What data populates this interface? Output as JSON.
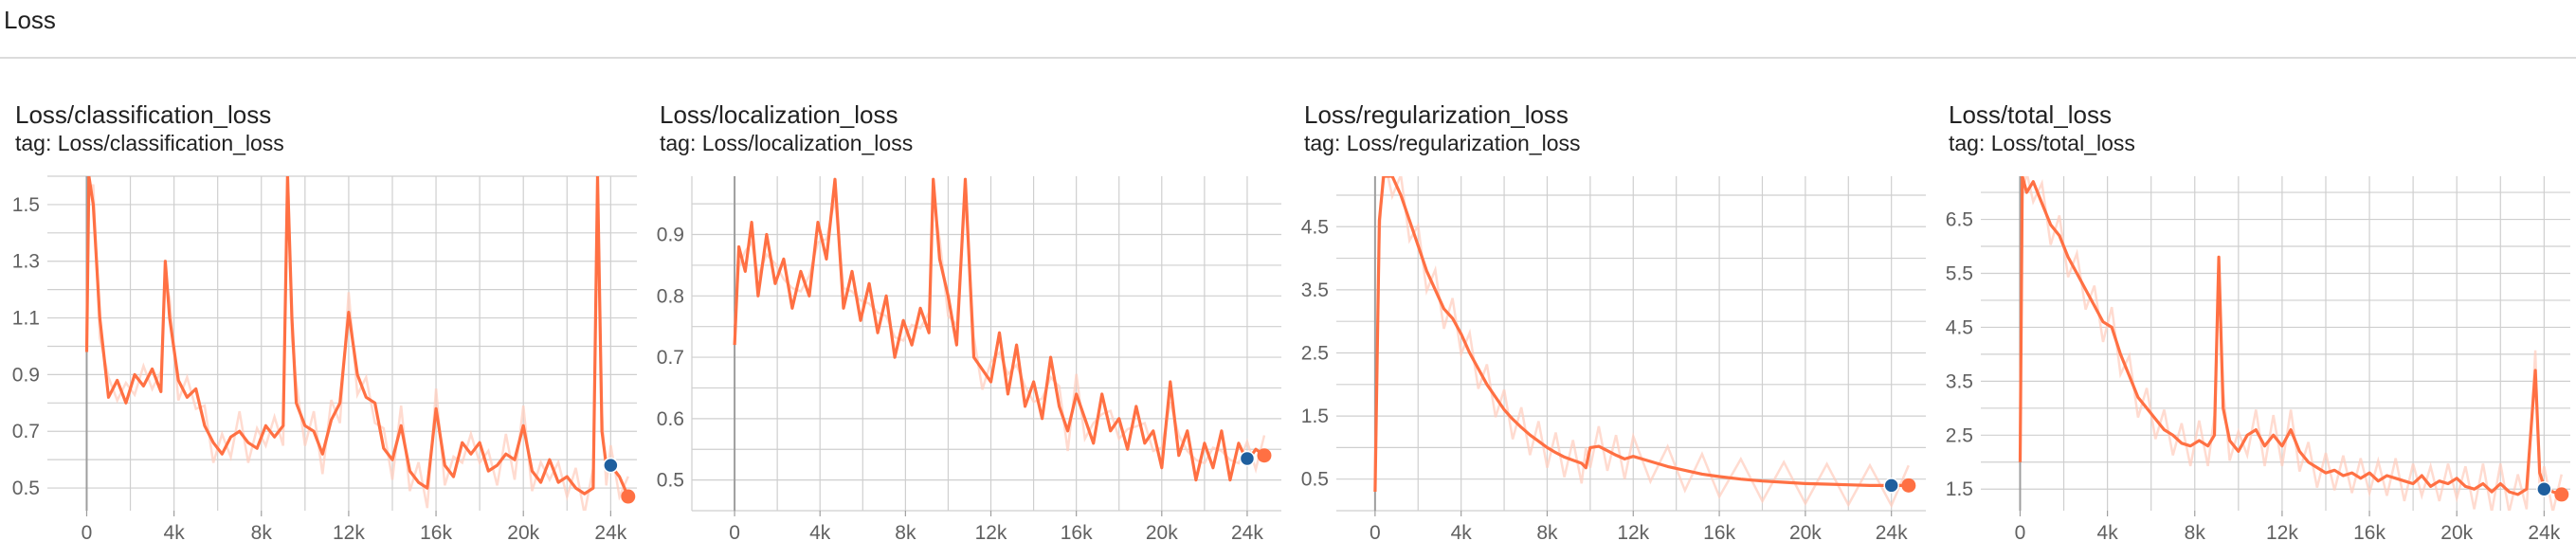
{
  "section": {
    "title": "Loss"
  },
  "colors": {
    "line": "#ff7043",
    "smooth_shade": "#ffccbc",
    "grid": "#cfcfcf",
    "cursor_dot": "#1f5f9e"
  },
  "chart_data": [
    {
      "type": "line",
      "title": "Loss/classification_loss",
      "tag": "tag: Loss/classification_loss",
      "xlim": [
        -1800,
        25200
      ],
      "ylim": [
        0.42,
        1.6
      ],
      "x_ticks": [
        0,
        4000,
        8000,
        12000,
        16000,
        20000,
        24000
      ],
      "x_tick_labels": [
        "0",
        "4k",
        "8k",
        "12k",
        "16k",
        "20k",
        "24k"
      ],
      "y_ticks": [
        0.5,
        0.7,
        0.9,
        1.1,
        1.3,
        1.5
      ],
      "y_tick_labels": [
        "0.5",
        "0.7",
        "0.9",
        "1.1",
        "1.3",
        "1.5"
      ],
      "series": [
        {
          "x": [
            0,
            100,
            300,
            600,
            1000,
            1400,
            1800,
            2200,
            2600,
            3000,
            3400,
            3600,
            3800,
            4200,
            4600,
            5000,
            5400,
            5800,
            6200,
            6600,
            7000,
            7400,
            7800,
            8200,
            8600,
            9000,
            9200,
            9400,
            9600,
            10000,
            10400,
            10800,
            11200,
            11600,
            12000,
            12400,
            12800,
            13200,
            13600,
            14000,
            14400,
            14800,
            15200,
            15600,
            16000,
            16400,
            16800,
            17200,
            17600,
            18000,
            18400,
            18800,
            19200,
            19600,
            20000,
            20400,
            20800,
            21200,
            21600,
            22000,
            22400,
            22800,
            23200,
            23400,
            23600,
            23800,
            24000,
            24400,
            24800
          ],
          "y": [
            0.98,
            1.6,
            1.5,
            1.1,
            0.82,
            0.88,
            0.8,
            0.9,
            0.86,
            0.92,
            0.84,
            1.3,
            1.1,
            0.88,
            0.82,
            0.85,
            0.72,
            0.66,
            0.62,
            0.68,
            0.7,
            0.66,
            0.64,
            0.72,
            0.68,
            0.72,
            1.6,
            1.1,
            0.8,
            0.72,
            0.7,
            0.62,
            0.74,
            0.8,
            1.12,
            0.9,
            0.82,
            0.8,
            0.64,
            0.6,
            0.72,
            0.56,
            0.52,
            0.5,
            0.78,
            0.58,
            0.54,
            0.66,
            0.62,
            0.66,
            0.56,
            0.58,
            0.62,
            0.6,
            0.72,
            0.56,
            0.52,
            0.6,
            0.52,
            0.54,
            0.5,
            0.48,
            0.5,
            1.6,
            0.7,
            0.58,
            0.58,
            0.54,
            0.47
          ]
        }
      ],
      "cursor_x": 24000,
      "cursor_y": 0.58
    },
    {
      "type": "line",
      "title": "Loss/localization_loss",
      "tag": "tag: Loss/localization_loss",
      "xlim": [
        -2000,
        25600
      ],
      "ylim": [
        0.45,
        0.995
      ],
      "x_ticks": [
        0,
        4000,
        8000,
        12000,
        16000,
        20000,
        24000
      ],
      "x_tick_labels": [
        "0",
        "4k",
        "8k",
        "12k",
        "16k",
        "20k",
        "24k"
      ],
      "y_ticks": [
        0.5,
        0.6,
        0.7,
        0.8,
        0.9
      ],
      "y_tick_labels": [
        "0.5",
        "0.6",
        "0.7",
        "0.8",
        "0.9"
      ],
      "series": [
        {
          "x": [
            0,
            200,
            500,
            800,
            1100,
            1500,
            1900,
            2300,
            2700,
            3100,
            3500,
            3900,
            4300,
            4700,
            5100,
            5500,
            5900,
            6300,
            6700,
            7100,
            7500,
            7900,
            8300,
            8700,
            9100,
            9300,
            9600,
            10000,
            10400,
            10800,
            11200,
            11600,
            12000,
            12400,
            12800,
            13200,
            13600,
            14000,
            14400,
            14800,
            15200,
            15600,
            16000,
            16400,
            16800,
            17200,
            17600,
            18000,
            18400,
            18800,
            19200,
            19600,
            20000,
            20400,
            20800,
            21200,
            21600,
            22000,
            22400,
            22800,
            23200,
            23600,
            24000,
            24400,
            24800
          ],
          "y": [
            0.72,
            0.88,
            0.84,
            0.92,
            0.8,
            0.9,
            0.82,
            0.86,
            0.78,
            0.84,
            0.8,
            0.92,
            0.86,
            0.99,
            0.78,
            0.84,
            0.76,
            0.82,
            0.74,
            0.8,
            0.7,
            0.76,
            0.72,
            0.78,
            0.74,
            0.99,
            0.86,
            0.8,
            0.72,
            0.99,
            0.7,
            0.68,
            0.66,
            0.74,
            0.64,
            0.72,
            0.62,
            0.66,
            0.6,
            0.7,
            0.62,
            0.58,
            0.64,
            0.6,
            0.56,
            0.64,
            0.58,
            0.6,
            0.55,
            0.62,
            0.56,
            0.58,
            0.52,
            0.66,
            0.54,
            0.58,
            0.5,
            0.56,
            0.52,
            0.58,
            0.5,
            0.56,
            0.53,
            0.55,
            0.54
          ]
        }
      ],
      "cursor_x": 24000,
      "cursor_y": 0.535
    },
    {
      "type": "line",
      "title": "Loss/regularization_loss",
      "tag": "tag: Loss/regularization_loss",
      "xlim": [
        -1800,
        25600
      ],
      "ylim": [
        0.0,
        5.3
      ],
      "x_ticks": [
        0,
        4000,
        8000,
        12000,
        16000,
        20000,
        24000
      ],
      "x_tick_labels": [
        "0",
        "4k",
        "8k",
        "12k",
        "16k",
        "20k",
        "24k"
      ],
      "y_ticks": [
        0.5,
        1.5,
        2.5,
        3.5,
        4.5
      ],
      "y_tick_labels": [
        "0.5",
        "1.5",
        "2.5",
        "3.5",
        "4.5"
      ],
      "series": [
        {
          "x": [
            0,
            200,
            400,
            800,
            1200,
            1600,
            2000,
            2400,
            2800,
            3200,
            3600,
            4000,
            4400,
            4800,
            5200,
            5600,
            6000,
            6400,
            6800,
            7200,
            7600,
            8000,
            8400,
            8800,
            9200,
            9600,
            9800,
            10000,
            10400,
            10800,
            11200,
            11600,
            12000,
            12800,
            13600,
            14400,
            15200,
            16000,
            17000,
            18000,
            19000,
            20000,
            21000,
            22000,
            23000,
            24000,
            24800
          ],
          "y": [
            0.3,
            4.6,
            5.3,
            5.3,
            5.0,
            4.6,
            4.2,
            3.8,
            3.5,
            3.2,
            3.05,
            2.8,
            2.5,
            2.25,
            2.0,
            1.8,
            1.6,
            1.45,
            1.32,
            1.2,
            1.1,
            1.0,
            0.92,
            0.85,
            0.8,
            0.75,
            0.68,
            1.0,
            1.02,
            0.95,
            0.88,
            0.82,
            0.86,
            0.78,
            0.7,
            0.64,
            0.58,
            0.54,
            0.5,
            0.47,
            0.45,
            0.43,
            0.42,
            0.41,
            0.4,
            0.4,
            0.4
          ]
        }
      ],
      "cursor_x": 24000,
      "cursor_y": 0.4
    },
    {
      "type": "line",
      "title": "Loss/total_loss",
      "tag": "tag: Loss/total_loss",
      "xlim": [
        -1800,
        25200
      ],
      "ylim": [
        1.1,
        7.3
      ],
      "x_ticks": [
        0,
        4000,
        8000,
        12000,
        16000,
        20000,
        24000
      ],
      "x_tick_labels": [
        "0",
        "4k",
        "8k",
        "12k",
        "16k",
        "20k",
        "24k"
      ],
      "y_ticks": [
        1.5,
        2.5,
        3.5,
        4.5,
        5.5,
        6.5
      ],
      "y_tick_labels": [
        "1.5",
        "2.5",
        "3.5",
        "4.5",
        "5.5",
        "6.5"
      ],
      "series": [
        {
          "x": [
            0,
            100,
            300,
            600,
            1000,
            1400,
            1800,
            2200,
            2600,
            3000,
            3400,
            3800,
            4200,
            4600,
            5000,
            5400,
            5800,
            6200,
            6600,
            7000,
            7400,
            7800,
            8200,
            8600,
            8900,
            9100,
            9300,
            9600,
            10000,
            10400,
            10800,
            11200,
            11600,
            12000,
            12400,
            12800,
            13200,
            13600,
            14000,
            14400,
            14800,
            15200,
            15600,
            16000,
            16400,
            16800,
            17200,
            17600,
            18000,
            18400,
            18800,
            19200,
            19600,
            20000,
            20400,
            20800,
            21200,
            21600,
            22000,
            22400,
            22800,
            23200,
            23600,
            23800,
            24000,
            24400,
            24800
          ],
          "y": [
            2.0,
            7.3,
            7.0,
            7.2,
            6.8,
            6.4,
            6.2,
            5.8,
            5.5,
            5.2,
            4.9,
            4.6,
            4.5,
            4.0,
            3.6,
            3.2,
            3.0,
            2.8,
            2.6,
            2.5,
            2.35,
            2.3,
            2.4,
            2.3,
            2.5,
            5.8,
            3.0,
            2.4,
            2.2,
            2.5,
            2.6,
            2.3,
            2.5,
            2.3,
            2.6,
            2.2,
            2.0,
            1.9,
            1.8,
            1.85,
            1.75,
            1.8,
            1.7,
            1.8,
            1.65,
            1.75,
            1.7,
            1.65,
            1.6,
            1.75,
            1.55,
            1.65,
            1.6,
            1.7,
            1.55,
            1.5,
            1.6,
            1.45,
            1.6,
            1.45,
            1.4,
            1.5,
            3.7,
            1.8,
            1.55,
            1.45,
            1.4
          ]
        }
      ],
      "cursor_x": 24000,
      "cursor_y": 1.5
    }
  ]
}
